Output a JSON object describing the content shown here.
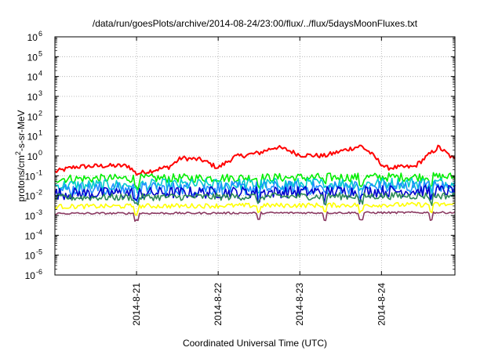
{
  "chart_data": {
    "type": "line",
    "title": "/data/run/goesPlots/archive/2014-08-24/23:00/flux/../flux/5daysMoonFluxes.txt",
    "xlabel": "Coordinated Universal Time (UTC)",
    "ylabel_parts": {
      "pre": "protons/cm",
      "sup": "2",
      "post": "-s-sr-MeV"
    },
    "yscale": "log",
    "ylim_exp": [
      -6,
      6
    ],
    "xlim_days": [
      0,
      4.9
    ],
    "x_ticks": [
      {
        "label": "2014-8-21",
        "day": 1
      },
      {
        "label": "2014-8-22",
        "day": 2
      },
      {
        "label": "2014-8-23",
        "day": 3
      },
      {
        "label": "2014-8-24",
        "day": 4
      }
    ],
    "grid": true,
    "series": [
      {
        "color": "#ff0000",
        "base_log": -0.55,
        "noise": 0.12,
        "trend": [
          [
            0,
            -0.8
          ],
          [
            0.25,
            -0.55
          ],
          [
            0.6,
            -0.5
          ],
          [
            0.9,
            -0.5
          ],
          [
            1.0,
            -0.9
          ],
          [
            1.4,
            -0.55
          ],
          [
            1.55,
            -0.1
          ],
          [
            1.8,
            -0.2
          ],
          [
            2.0,
            -0.6
          ],
          [
            2.2,
            -0.05
          ],
          [
            2.5,
            0.15
          ],
          [
            2.7,
            0.45
          ],
          [
            2.85,
            0.3
          ],
          [
            3.0,
            0.05
          ],
          [
            3.3,
            0.0
          ],
          [
            3.6,
            0.35
          ],
          [
            3.75,
            0.5
          ],
          [
            3.85,
            0.2
          ],
          [
            4.05,
            -0.6
          ],
          [
            4.4,
            -0.55
          ],
          [
            4.7,
            0.45
          ],
          [
            4.9,
            -0.2
          ]
        ]
      },
      {
        "color": "#00ee00",
        "base_log": -1.05,
        "noise": 0.22,
        "trend": [
          [
            0,
            -1.15
          ],
          [
            4.9,
            -1.05
          ]
        ]
      },
      {
        "color": "#00cccc",
        "base_log": -1.4,
        "noise": 0.3,
        "trend": [
          [
            0,
            -1.5
          ],
          [
            4.9,
            -1.35
          ]
        ]
      },
      {
        "color": "#1e90ff",
        "base_log": -1.6,
        "noise": 0.35,
        "trend": [
          [
            0,
            -1.7
          ],
          [
            4.9,
            -1.55
          ]
        ]
      },
      {
        "color": "#0000cc",
        "base_log": -1.8,
        "noise": 0.3,
        "trend": [
          [
            0,
            -1.9
          ],
          [
            4.9,
            -1.75
          ]
        ]
      },
      {
        "color": "#2e8b57",
        "base_log": -2.05,
        "noise": 0.18,
        "trend": [
          [
            0,
            -2.1
          ],
          [
            4.9,
            -2.0
          ]
        ]
      },
      {
        "color": "#ffff00",
        "base_log": -2.45,
        "noise": 0.12,
        "trend": [
          [
            0,
            -2.55
          ],
          [
            4.9,
            -2.45
          ]
        ]
      },
      {
        "color": "#8b3a62",
        "base_log": -2.85,
        "noise": 0.05,
        "trend": [
          [
            0,
            -2.9
          ],
          [
            4.9,
            -2.85
          ]
        ]
      }
    ]
  }
}
